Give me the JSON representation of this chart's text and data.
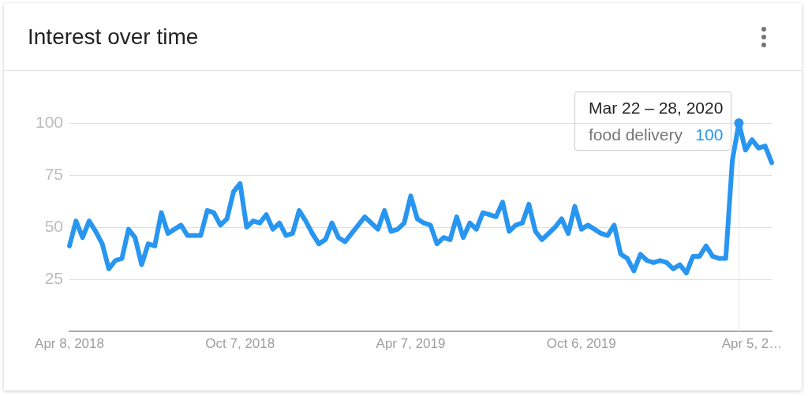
{
  "chart_data": {
    "type": "line",
    "title": "Interest over time",
    "x": [
      "2018-04-08",
      "2018-04-15",
      "2018-04-22",
      "2018-04-29",
      "2018-05-06",
      "2018-05-13",
      "2018-05-20",
      "2018-05-27",
      "2018-06-03",
      "2018-06-10",
      "2018-06-17",
      "2018-06-24",
      "2018-07-01",
      "2018-07-08",
      "2018-07-15",
      "2018-07-22",
      "2018-07-29",
      "2018-08-05",
      "2018-08-12",
      "2018-08-19",
      "2018-08-26",
      "2018-09-02",
      "2018-09-09",
      "2018-09-16",
      "2018-09-23",
      "2018-09-30",
      "2018-10-07",
      "2018-10-14",
      "2018-10-21",
      "2018-10-28",
      "2018-11-04",
      "2018-11-11",
      "2018-11-18",
      "2018-11-25",
      "2018-12-02",
      "2018-12-09",
      "2018-12-16",
      "2018-12-23",
      "2018-12-30",
      "2019-01-06",
      "2019-01-13",
      "2019-01-20",
      "2019-01-27",
      "2019-02-03",
      "2019-02-10",
      "2019-02-17",
      "2019-02-24",
      "2019-03-03",
      "2019-03-10",
      "2019-03-17",
      "2019-03-24",
      "2019-03-31",
      "2019-04-07",
      "2019-04-14",
      "2019-04-21",
      "2019-04-28",
      "2019-05-05",
      "2019-05-12",
      "2019-05-19",
      "2019-05-26",
      "2019-06-02",
      "2019-06-09",
      "2019-06-16",
      "2019-06-23",
      "2019-06-30",
      "2019-07-07",
      "2019-07-14",
      "2019-07-21",
      "2019-07-28",
      "2019-08-04",
      "2019-08-11",
      "2019-08-18",
      "2019-08-25",
      "2019-09-01",
      "2019-09-08",
      "2019-09-15",
      "2019-09-22",
      "2019-09-29",
      "2019-10-06",
      "2019-10-13",
      "2019-10-20",
      "2019-10-27",
      "2019-11-03",
      "2019-11-10",
      "2019-11-17",
      "2019-11-24",
      "2019-12-01",
      "2019-12-08",
      "2019-12-15",
      "2019-12-22",
      "2019-12-29",
      "2020-01-05",
      "2020-01-12",
      "2020-01-19",
      "2020-01-26",
      "2020-02-02",
      "2020-02-09",
      "2020-02-16",
      "2020-02-23",
      "2020-03-01",
      "2020-03-08",
      "2020-03-15",
      "2020-03-22",
      "2020-03-29",
      "2020-04-05",
      "2020-04-12",
      "2020-04-19",
      "2020-04-26"
    ],
    "series": [
      {
        "name": "food delivery",
        "color": "#2896f0",
        "values": [
          41,
          53,
          45,
          53,
          48,
          42,
          30,
          34,
          35,
          49,
          45,
          32,
          42,
          41,
          57,
          47,
          49,
          51,
          46,
          46,
          46,
          58,
          57,
          51,
          54,
          67,
          71,
          50,
          53,
          52,
          56,
          49,
          52,
          46,
          47,
          58,
          53,
          47,
          42,
          44,
          52,
          45,
          43,
          47,
          51,
          55,
          52,
          49,
          58,
          48,
          49,
          52,
          65,
          54,
          52,
          51,
          42,
          45,
          44,
          55,
          45,
          52,
          49,
          57,
          56,
          55,
          62,
          48,
          51,
          52,
          61,
          48,
          44,
          47,
          50,
          54,
          47,
          60,
          49,
          51,
          49,
          47,
          46,
          51,
          37,
          35,
          29,
          37,
          34,
          33,
          34,
          33,
          30,
          32,
          28,
          36,
          36,
          41,
          36,
          35,
          35,
          82,
          100,
          87,
          92,
          88,
          89,
          81
        ],
        "value_labels": [
          null,
          null,
          null,
          null,
          null,
          null,
          null,
          null,
          null,
          null,
          null,
          null,
          null,
          null,
          null,
          null,
          null,
          null,
          null,
          null,
          null,
          null,
          null,
          null,
          null,
          null,
          null,
          null,
          null,
          null,
          null,
          null,
          null,
          null,
          null,
          null,
          null,
          null,
          null,
          null,
          null,
          null,
          null,
          null,
          null,
          null,
          null,
          null,
          null,
          null,
          null,
          null,
          null,
          null,
          null,
          null,
          null,
          null,
          null,
          null,
          null,
          null,
          null,
          null,
          null,
          null,
          null,
          null,
          null,
          null,
          null,
          null,
          null,
          null,
          null,
          null,
          null,
          null,
          null,
          null,
          null,
          null,
          null,
          null,
          null,
          null,
          null,
          null,
          null,
          null,
          null,
          null,
          null,
          null,
          null,
          null,
          null,
          null,
          null,
          null,
          null,
          null,
          "100",
          null,
          null,
          null,
          null,
          null
        ]
      }
    ],
    "annotations": [
      {
        "text": "Mar 22 – 28, 2020",
        "x": "2020-03-22",
        "y": 100
      }
    ],
    "ref_lines": [
      {
        "axis": "x",
        "value": "2020-03-22",
        "color": "#e6e6e6"
      }
    ],
    "xlim": [
      "2018-04-08",
      "2020-04-26"
    ],
    "xticks": [
      {
        "value": "2018-04-08",
        "label": "Apr 8, 2018"
      },
      {
        "value": "2018-10-07",
        "label": "Oct 7, 2018"
      },
      {
        "value": "2019-04-07",
        "label": "Apr 7, 2019"
      },
      {
        "value": "2019-10-06",
        "label": "Oct 6, 2019"
      },
      {
        "value": "2020-04-05",
        "label": "Apr 5, 2…"
      }
    ],
    "ylim": [
      0,
      100
    ],
    "yticks": [
      25,
      50,
      75,
      100
    ],
    "grid": "y",
    "legend": false,
    "marker": "none",
    "line_style": "solid"
  }
}
